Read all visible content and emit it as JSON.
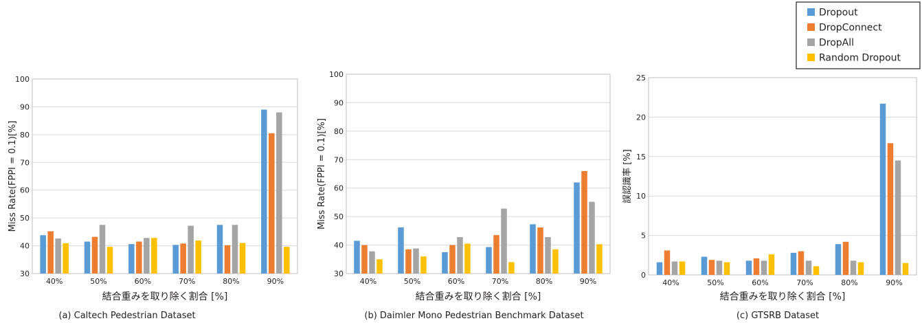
{
  "colors": {
    "Dropout": "#5b9bd5",
    "DropConnect": "#ed7d31",
    "DropAll": "#a5a5a5",
    "Random Dropout": "#ffc000"
  },
  "legend": {
    "placement": "top-right",
    "entries": [
      "Dropout",
      "DropConnect",
      "DropAll",
      "Random Dropout"
    ]
  },
  "chart_data": [
    {
      "type": "bar",
      "caption": "(a) Caltech Pedestrian Dataset",
      "xlabel": "結合重みを取り除く割合 [%]",
      "ylabel": "Miss Rate(FPPI = 0.1)[%]",
      "ylim": [
        30,
        100
      ],
      "yticks": [
        30,
        40,
        50,
        60,
        70,
        80,
        90,
        100
      ],
      "grid": true,
      "categories": [
        "40%",
        "50%",
        "60%",
        "70%",
        "80%",
        "90%"
      ],
      "series": [
        {
          "name": "Dropout",
          "values": [
            43.8,
            41.5,
            40.6,
            40.3,
            47.5,
            89.0
          ]
        },
        {
          "name": "DropConnect",
          "values": [
            45.2,
            43.2,
            41.5,
            40.8,
            40.2,
            80.5
          ]
        },
        {
          "name": "DropAll",
          "values": [
            42.6,
            47.5,
            42.8,
            47.2,
            47.5,
            88.0
          ]
        },
        {
          "name": "Random Dropout",
          "values": [
            40.9,
            39.6,
            42.8,
            41.9,
            41.0,
            39.6
          ]
        }
      ]
    },
    {
      "type": "bar",
      "caption": "(b) Daimler Mono Pedestrian Benchmark Dataset",
      "xlabel": "結合重みを取り除く割合 [%]",
      "ylabel": "Miss Rate(FPPI = 0.1)[%]",
      "ylim": [
        30,
        100
      ],
      "yticks": [
        30,
        40,
        50,
        60,
        70,
        80,
        90,
        100
      ],
      "grid": true,
      "categories": [
        "40%",
        "50%",
        "60%",
        "70%",
        "80%",
        "90%"
      ],
      "series": [
        {
          "name": "Dropout",
          "values": [
            41.5,
            46.2,
            37.5,
            39.3,
            47.3,
            62.0
          ]
        },
        {
          "name": "DropConnect",
          "values": [
            40.0,
            38.5,
            40.0,
            43.5,
            46.2,
            66.0
          ]
        },
        {
          "name": "DropAll",
          "values": [
            37.8,
            38.8,
            42.8,
            52.8,
            42.8,
            55.2
          ]
        },
        {
          "name": "Random Dropout",
          "values": [
            35.0,
            36.0,
            40.5,
            34.0,
            38.5,
            40.3
          ]
        }
      ]
    },
    {
      "type": "bar",
      "caption": "(c) GTSRB Dataset",
      "xlabel": "結合重みを取り除く割合 [%]",
      "ylabel": "誤認識率 [%]",
      "ylim": [
        0,
        25
      ],
      "yticks": [
        0,
        5,
        10,
        15,
        20,
        25
      ],
      "grid": true,
      "categories": [
        "40%",
        "50%",
        "60%",
        "70%",
        "80%",
        "90%"
      ],
      "series": [
        {
          "name": "Dropout",
          "values": [
            1.6,
            2.3,
            1.8,
            2.8,
            3.9,
            21.7
          ]
        },
        {
          "name": "DropConnect",
          "values": [
            3.1,
            1.9,
            2.1,
            3.0,
            4.2,
            16.7
          ]
        },
        {
          "name": "DropAll",
          "values": [
            1.7,
            1.8,
            1.8,
            1.8,
            1.8,
            14.5
          ]
        },
        {
          "name": "Random Dropout",
          "values": [
            1.7,
            1.6,
            2.6,
            1.1,
            1.6,
            1.5
          ]
        }
      ]
    }
  ]
}
